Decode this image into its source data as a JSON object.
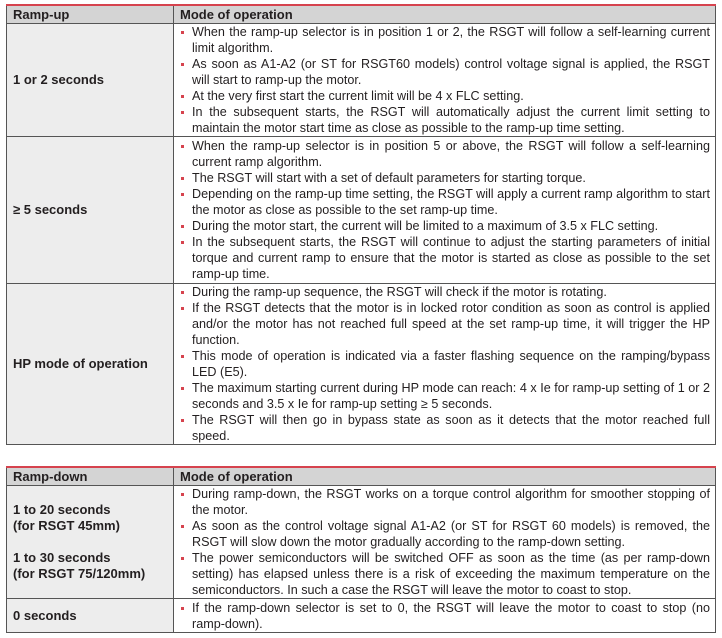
{
  "ramp_up_table": {
    "headers": [
      "Ramp-up",
      "Mode of operation"
    ],
    "rows": [
      {
        "label": [
          "1 or 2 seconds"
        ],
        "bullets": [
          "When the ramp-up selector is in position 1 or 2, the RSGT will follow a self-learning current limit algorithm.",
          "As soon as A1-A2 (or ST for RSGT60 models) control voltage signal is applied, the RSGT will start to ramp-up the motor.",
          "At the very first start the current limit will be 4 x FLC setting.",
          "In the subsequent starts, the RSGT will automatically adjust the current limit setting to maintain the motor start time as close as possible to the ramp-up time setting."
        ]
      },
      {
        "label": [
          "≥ 5 seconds"
        ],
        "bullets": [
          "When the ramp-up selector is in position 5 or above, the RSGT will follow a self-learning current ramp algorithm.",
          "The RSGT will start with a set of default parameters for starting torque.",
          "Depending on the ramp-up time setting, the RSGT will apply a current ramp algorithm to start the motor as close as possible to the set ramp-up time.",
          "During the motor start, the current will be limited to a maximum of 3.5 x FLC setting.",
          "In the subsequent starts, the RSGT will continue to adjust the starting parameters of initial torque and current ramp to ensure that the motor is started as close as possible to the set ramp-up time."
        ]
      },
      {
        "label": [
          "HP mode of operation"
        ],
        "bullets": [
          "During the ramp-up sequence, the RSGT will check if the motor is rotating.",
          "If the RSGT detects that the motor is in locked rotor condition as soon as control is applied and/or the motor has not reached full speed at the set ramp-up time, it will trigger the HP function.",
          "This mode of operation is indicated via a faster flashing sequence on the ramping/bypass LED (E5).",
          "The maximum starting current during HP mode can reach: 4 x Ie for ramp-up setting of 1 or 2 seconds and 3.5 x Ie for ramp-up setting ≥ 5 seconds.",
          "The RSGT will then go in bypass state as soon as it detects that the motor reached full speed."
        ]
      }
    ]
  },
  "ramp_down_table": {
    "headers": [
      "Ramp-down",
      "Mode of operation"
    ],
    "rows": [
      {
        "label": [
          "1 to 20 seconds",
          "(for RSGT 45mm)",
          "1 to 30 seconds",
          "(for RSGT 75/120mm)"
        ],
        "bullets": [
          "During ramp-down, the RSGT works on a torque control algorithm for smoother stopping of the motor.",
          "As soon as the control voltage signal A1-A2 (or ST for RSGT 60 models) is removed, the RSGT will slow down the motor gradually according to the ramp-down setting.",
          "The power semiconductors will be switched OFF as soon as the time (as per ramp-down setting) has elapsed unless there is a risk of exceeding the maximum temperature on the semiconductors. In such a case the RSGT will leave the motor to coast to stop."
        ]
      },
      {
        "label": [
          "0 seconds"
        ],
        "bullets": [
          "If the ramp-down selector is set to 0, the RSGT will leave the motor to coast to stop (no ramp-down)."
        ]
      }
    ]
  },
  "accent_color": "#d6434e"
}
